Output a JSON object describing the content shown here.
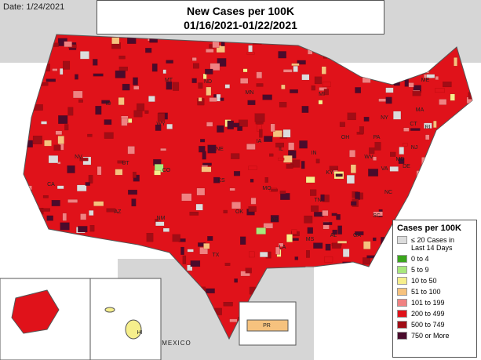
{
  "date": "Date: 1/24/2021",
  "title": "New Cases per 100K",
  "subtitle": "01/16/2021-01/22/2021",
  "legend": {
    "title": "Cases per 100K",
    "items": [
      {
        "label": "≤ 20 Cases in Last 14 Days",
        "color": "#dcdcdc"
      },
      {
        "label": "0 to 4",
        "color": "#3aa61c"
      },
      {
        "label": "5 to 9",
        "color": "#a8e87c"
      },
      {
        "label": "10 to 50",
        "color": "#f6ef8c"
      },
      {
        "label": "51 to 100",
        "color": "#f6c27e"
      },
      {
        "label": "101 to 199",
        "color": "#f08282"
      },
      {
        "label": "200 to 499",
        "color": "#e0121a"
      },
      {
        "label": "500 to 749",
        "color": "#a10d16"
      },
      {
        "label": "750 or More",
        "color": "#4a0b2c"
      }
    ]
  },
  "state_labels": [
    "MT",
    "ND",
    "MN",
    "ID",
    "WY",
    "MI",
    "NY",
    "ME",
    "MA",
    "CT",
    "RI",
    "NJ",
    "PA",
    "DE",
    "MD",
    "OH",
    "IN",
    "IL",
    "IA",
    "NE",
    "CO",
    "UT",
    "NV",
    "CA",
    "AZ",
    "NM",
    "TX",
    "OK",
    "KS",
    "MO",
    "AR",
    "LA",
    "MS",
    "AL",
    "GA",
    "SC",
    "NC",
    "TN",
    "KY",
    "VA",
    "WV"
  ],
  "country_label": "MEXICO",
  "inset_labels": [
    "HI",
    "PR"
  ]
}
